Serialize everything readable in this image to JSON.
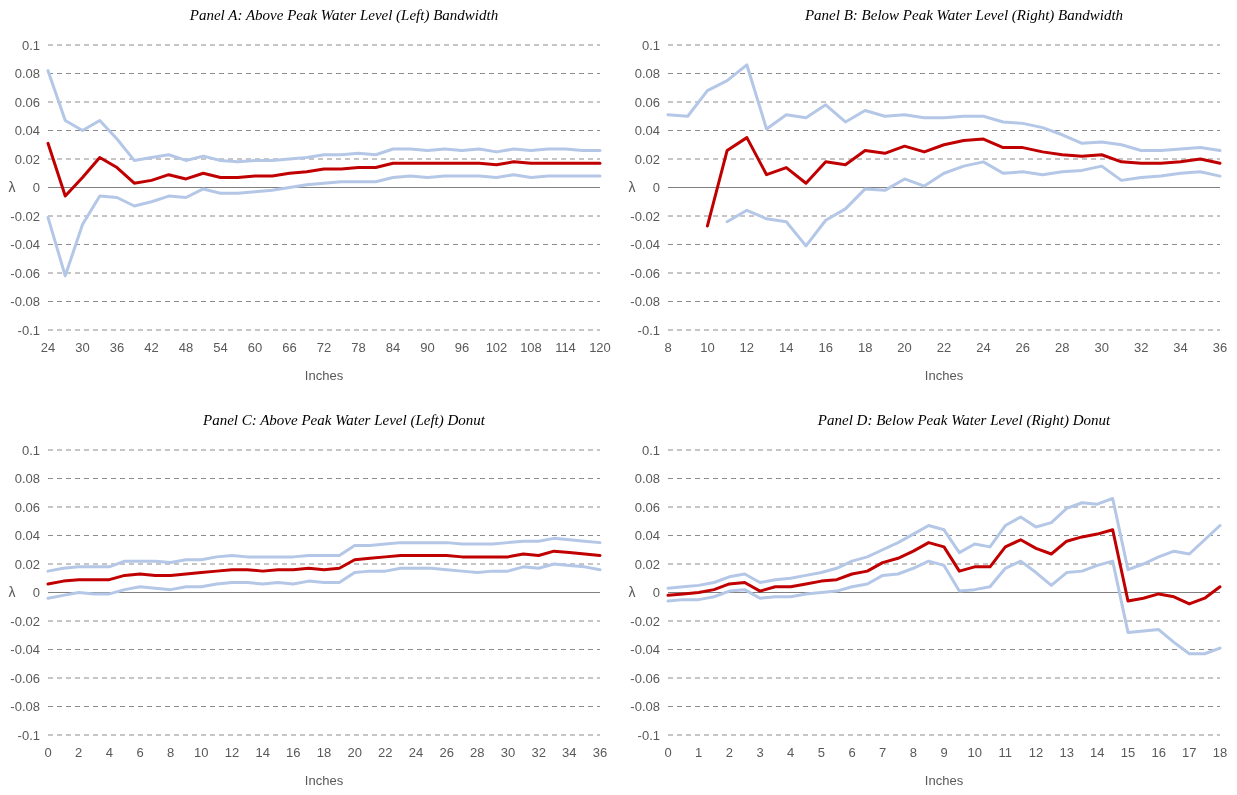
{
  "chart_data": [
    {
      "type": "line",
      "title": "Panel A: Above Peak Water Level (Left) Bandwidth",
      "xlabel": "Inches",
      "ylabel": "λ",
      "x": [
        24,
        27,
        30,
        33,
        36,
        39,
        42,
        45,
        48,
        51,
        54,
        57,
        60,
        63,
        66,
        69,
        72,
        75,
        78,
        81,
        84,
        87,
        90,
        93,
        96,
        99,
        102,
        105,
        108,
        111,
        114,
        117,
        120
      ],
      "xlim": [
        24,
        120
      ],
      "xticks": [
        24,
        30,
        36,
        42,
        48,
        54,
        60,
        66,
        72,
        78,
        84,
        90,
        96,
        102,
        108,
        114,
        120
      ],
      "ylim": [
        -0.1,
        0.1
      ],
      "yticks": [
        0.1,
        0.08,
        0.06,
        0.04,
        0.02,
        0,
        -0.02,
        -0.04,
        -0.06,
        -0.08,
        -0.1
      ],
      "grid": "y",
      "line_style": "solid",
      "series": [
        {
          "color": "#b4c7e7",
          "values": [
            0.082,
            0.047,
            0.04,
            0.047,
            0.034,
            0.019,
            0.021,
            0.023,
            0.019,
            0.022,
            0.019,
            0.018,
            0.019,
            0.019,
            0.02,
            0.021,
            0.023,
            0.023,
            0.024,
            0.023,
            0.027,
            0.027,
            0.026,
            0.027,
            0.026,
            0.027,
            0.025,
            0.027,
            0.026,
            0.027,
            0.027,
            0.026,
            0.026
          ]
        },
        {
          "color": "#b4c7e7",
          "values": [
            -0.021,
            -0.062,
            -0.026,
            -0.006,
            -0.007,
            -0.013,
            -0.01,
            -0.006,
            -0.007,
            -0.001,
            -0.004,
            -0.004,
            -0.003,
            -0.002,
            0.0,
            0.002,
            0.003,
            0.004,
            0.004,
            0.004,
            0.007,
            0.008,
            0.007,
            0.008,
            0.008,
            0.008,
            0.007,
            0.009,
            0.007,
            0.008,
            0.008,
            0.008,
            0.008
          ]
        },
        {
          "color": "#c00000",
          "values": [
            0.031,
            -0.006,
            0.007,
            0.021,
            0.014,
            0.003,
            0.005,
            0.009,
            0.006,
            0.01,
            0.007,
            0.007,
            0.008,
            0.008,
            0.01,
            0.011,
            0.013,
            0.013,
            0.014,
            0.014,
            0.017,
            0.017,
            0.017,
            0.017,
            0.017,
            0.017,
            0.016,
            0.018,
            0.017,
            0.017,
            0.017,
            0.017,
            0.017
          ]
        }
      ]
    },
    {
      "type": "line",
      "title": "Panel B: Below Peak Water Level (Right) Bandwidth",
      "xlabel": "Inches",
      "ylabel": "λ",
      "x": [
        8,
        9,
        10,
        11,
        12,
        13,
        14,
        15,
        16,
        17,
        18,
        19,
        20,
        21,
        22,
        23,
        24,
        25,
        26,
        27,
        28,
        29,
        30,
        31,
        32,
        33,
        34,
        35,
        36
      ],
      "xlim": [
        8,
        36
      ],
      "xticks": [
        8,
        10,
        12,
        14,
        16,
        18,
        20,
        22,
        24,
        26,
        28,
        30,
        32,
        34,
        36
      ],
      "ylim": [
        -0.1,
        0.1
      ],
      "yticks": [
        0.1,
        0.08,
        0.06,
        0.04,
        0.02,
        0,
        -0.02,
        -0.04,
        -0.06,
        -0.08,
        -0.1
      ],
      "grid": "y",
      "line_style": "solid",
      "series": [
        {
          "color": "#b4c7e7",
          "values": [
            0.051,
            0.05,
            0.068,
            0.075,
            0.086,
            0.041,
            0.051,
            0.049,
            0.058,
            0.046,
            0.054,
            0.05,
            0.051,
            0.049,
            0.049,
            0.05,
            0.05,
            0.046,
            0.045,
            0.042,
            0.037,
            0.031,
            0.032,
            0.03,
            0.026,
            0.026,
            0.027,
            0.028,
            0.026
          ]
        },
        {
          "color": "#b4c7e7",
          "values": [
            null,
            null,
            null,
            -0.024,
            -0.016,
            -0.022,
            -0.024,
            -0.041,
            -0.023,
            -0.015,
            -0.001,
            -0.002,
            0.006,
            0.001,
            0.01,
            0.015,
            0.018,
            0.01,
            0.011,
            0.009,
            0.011,
            0.012,
            0.015,
            0.005,
            0.007,
            0.008,
            0.01,
            0.011,
            0.008
          ]
        },
        {
          "color": "#c00000",
          "values": [
            null,
            null,
            -0.027,
            0.026,
            0.035,
            0.009,
            0.014,
            0.003,
            0.018,
            0.016,
            0.026,
            0.024,
            0.029,
            0.025,
            0.03,
            0.033,
            0.034,
            0.028,
            0.028,
            0.025,
            0.023,
            0.022,
            0.023,
            0.018,
            0.017,
            0.017,
            0.018,
            0.02,
            0.017
          ]
        }
      ]
    },
    {
      "type": "line",
      "title": "Panel C: Above Peak Water Level (Left) Donut",
      "xlabel": "Inches",
      "ylabel": "λ",
      "x": [
        0,
        1,
        2,
        3,
        4,
        5,
        6,
        7,
        8,
        9,
        10,
        11,
        12,
        13,
        14,
        15,
        16,
        17,
        18,
        19,
        20,
        21,
        22,
        23,
        24,
        25,
        26,
        27,
        28,
        29,
        30,
        31,
        32,
        33,
        34,
        35,
        36
      ],
      "xlim": [
        0,
        36
      ],
      "xticks": [
        0,
        2,
        4,
        6,
        8,
        10,
        12,
        14,
        16,
        18,
        20,
        22,
        24,
        26,
        28,
        30,
        32,
        34,
        36
      ],
      "ylim": [
        -0.1,
        0.1
      ],
      "yticks": [
        0.1,
        0.08,
        0.06,
        0.04,
        0.02,
        0,
        -0.02,
        -0.04,
        -0.06,
        -0.08,
        -0.1
      ],
      "grid": "y",
      "line_style": "solid",
      "series": [
        {
          "color": "#b4c7e7",
          "values": [
            0.015,
            0.017,
            0.018,
            0.018,
            0.018,
            0.022,
            0.022,
            0.022,
            0.021,
            0.023,
            0.023,
            0.025,
            0.026,
            0.025,
            0.025,
            0.025,
            0.025,
            0.026,
            0.026,
            0.026,
            0.033,
            0.033,
            0.034,
            0.035,
            0.035,
            0.035,
            0.035,
            0.034,
            0.034,
            0.034,
            0.035,
            0.036,
            0.036,
            0.038,
            0.037,
            0.036,
            0.035
          ]
        },
        {
          "color": "#b4c7e7",
          "values": [
            -0.004,
            -0.002,
            0.0,
            -0.001,
            -0.001,
            0.002,
            0.004,
            0.003,
            0.002,
            0.004,
            0.004,
            0.006,
            0.007,
            0.007,
            0.006,
            0.007,
            0.006,
            0.008,
            0.007,
            0.007,
            0.014,
            0.015,
            0.015,
            0.017,
            0.017,
            0.017,
            0.016,
            0.015,
            0.014,
            0.015,
            0.015,
            0.018,
            0.017,
            0.02,
            0.019,
            0.018,
            0.016
          ]
        },
        {
          "color": "#c00000",
          "values": [
            0.006,
            0.008,
            0.009,
            0.009,
            0.009,
            0.012,
            0.013,
            0.012,
            0.012,
            0.013,
            0.014,
            0.015,
            0.016,
            0.016,
            0.015,
            0.016,
            0.016,
            0.017,
            0.016,
            0.017,
            0.023,
            0.024,
            0.025,
            0.026,
            0.026,
            0.026,
            0.026,
            0.025,
            0.025,
            0.025,
            0.025,
            0.027,
            0.026,
            0.029,
            0.028,
            0.027,
            0.026
          ]
        }
      ]
    },
    {
      "type": "line",
      "title": "Panel D: Below Peak Water Level (Right) Donut",
      "xlabel": "Inches",
      "ylabel": "λ",
      "x": [
        0,
        0.5,
        1,
        1.5,
        2,
        2.5,
        3,
        3.5,
        4,
        4.5,
        5,
        5.5,
        6,
        6.5,
        7,
        7.5,
        8,
        8.5,
        9,
        9.5,
        10,
        10.5,
        11,
        11.5,
        12,
        12.5,
        13,
        13.5,
        14,
        14.5,
        15,
        15.5,
        16,
        16.5,
        17,
        17.5,
        18
      ],
      "xlim": [
        0,
        18
      ],
      "xticks": [
        0,
        1,
        2,
        3,
        4,
        5,
        6,
        7,
        8,
        9,
        10,
        11,
        12,
        13,
        14,
        15,
        16,
        17,
        18
      ],
      "ylim": [
        -0.1,
        0.1
      ],
      "yticks": [
        0.1,
        0.08,
        0.06,
        0.04,
        0.02,
        0,
        -0.02,
        -0.04,
        -0.06,
        -0.08,
        -0.1
      ],
      "grid": "y",
      "line_style": "solid",
      "series": [
        {
          "color": "#b4c7e7",
          "values": [
            0.003,
            0.004,
            0.005,
            0.007,
            0.011,
            0.013,
            0.007,
            0.009,
            0.01,
            0.012,
            0.014,
            0.017,
            0.022,
            0.025,
            0.03,
            0.035,
            0.041,
            0.047,
            0.044,
            0.028,
            0.034,
            0.032,
            0.047,
            0.053,
            0.046,
            0.049,
            0.059,
            0.063,
            0.062,
            0.066,
            0.016,
            0.02,
            0.025,
            0.029,
            0.027,
            0.037,
            0.047
          ]
        },
        {
          "color": "#b4c7e7",
          "values": [
            -0.006,
            -0.005,
            -0.005,
            -0.003,
            0.001,
            0.002,
            -0.004,
            -0.003,
            -0.003,
            -0.001,
            0.0,
            0.001,
            0.004,
            0.006,
            0.012,
            0.013,
            0.017,
            0.022,
            0.019,
            0.001,
            0.002,
            0.004,
            0.017,
            0.022,
            0.014,
            0.005,
            0.014,
            0.015,
            0.019,
            0.022,
            -0.028,
            -0.027,
            -0.026,
            -0.035,
            -0.043,
            -0.043,
            -0.039
          ]
        },
        {
          "color": "#c00000",
          "values": [
            -0.002,
            -0.001,
            0.0,
            0.002,
            0.006,
            0.007,
            0.001,
            0.004,
            0.004,
            0.006,
            0.008,
            0.009,
            0.013,
            0.015,
            0.021,
            0.024,
            0.029,
            0.035,
            0.032,
            0.015,
            0.018,
            0.018,
            0.032,
            0.037,
            0.031,
            0.027,
            0.036,
            0.039,
            0.041,
            0.044,
            -0.006,
            -0.004,
            -0.001,
            -0.003,
            -0.008,
            -0.004,
            0.004
          ]
        }
      ]
    }
  ]
}
